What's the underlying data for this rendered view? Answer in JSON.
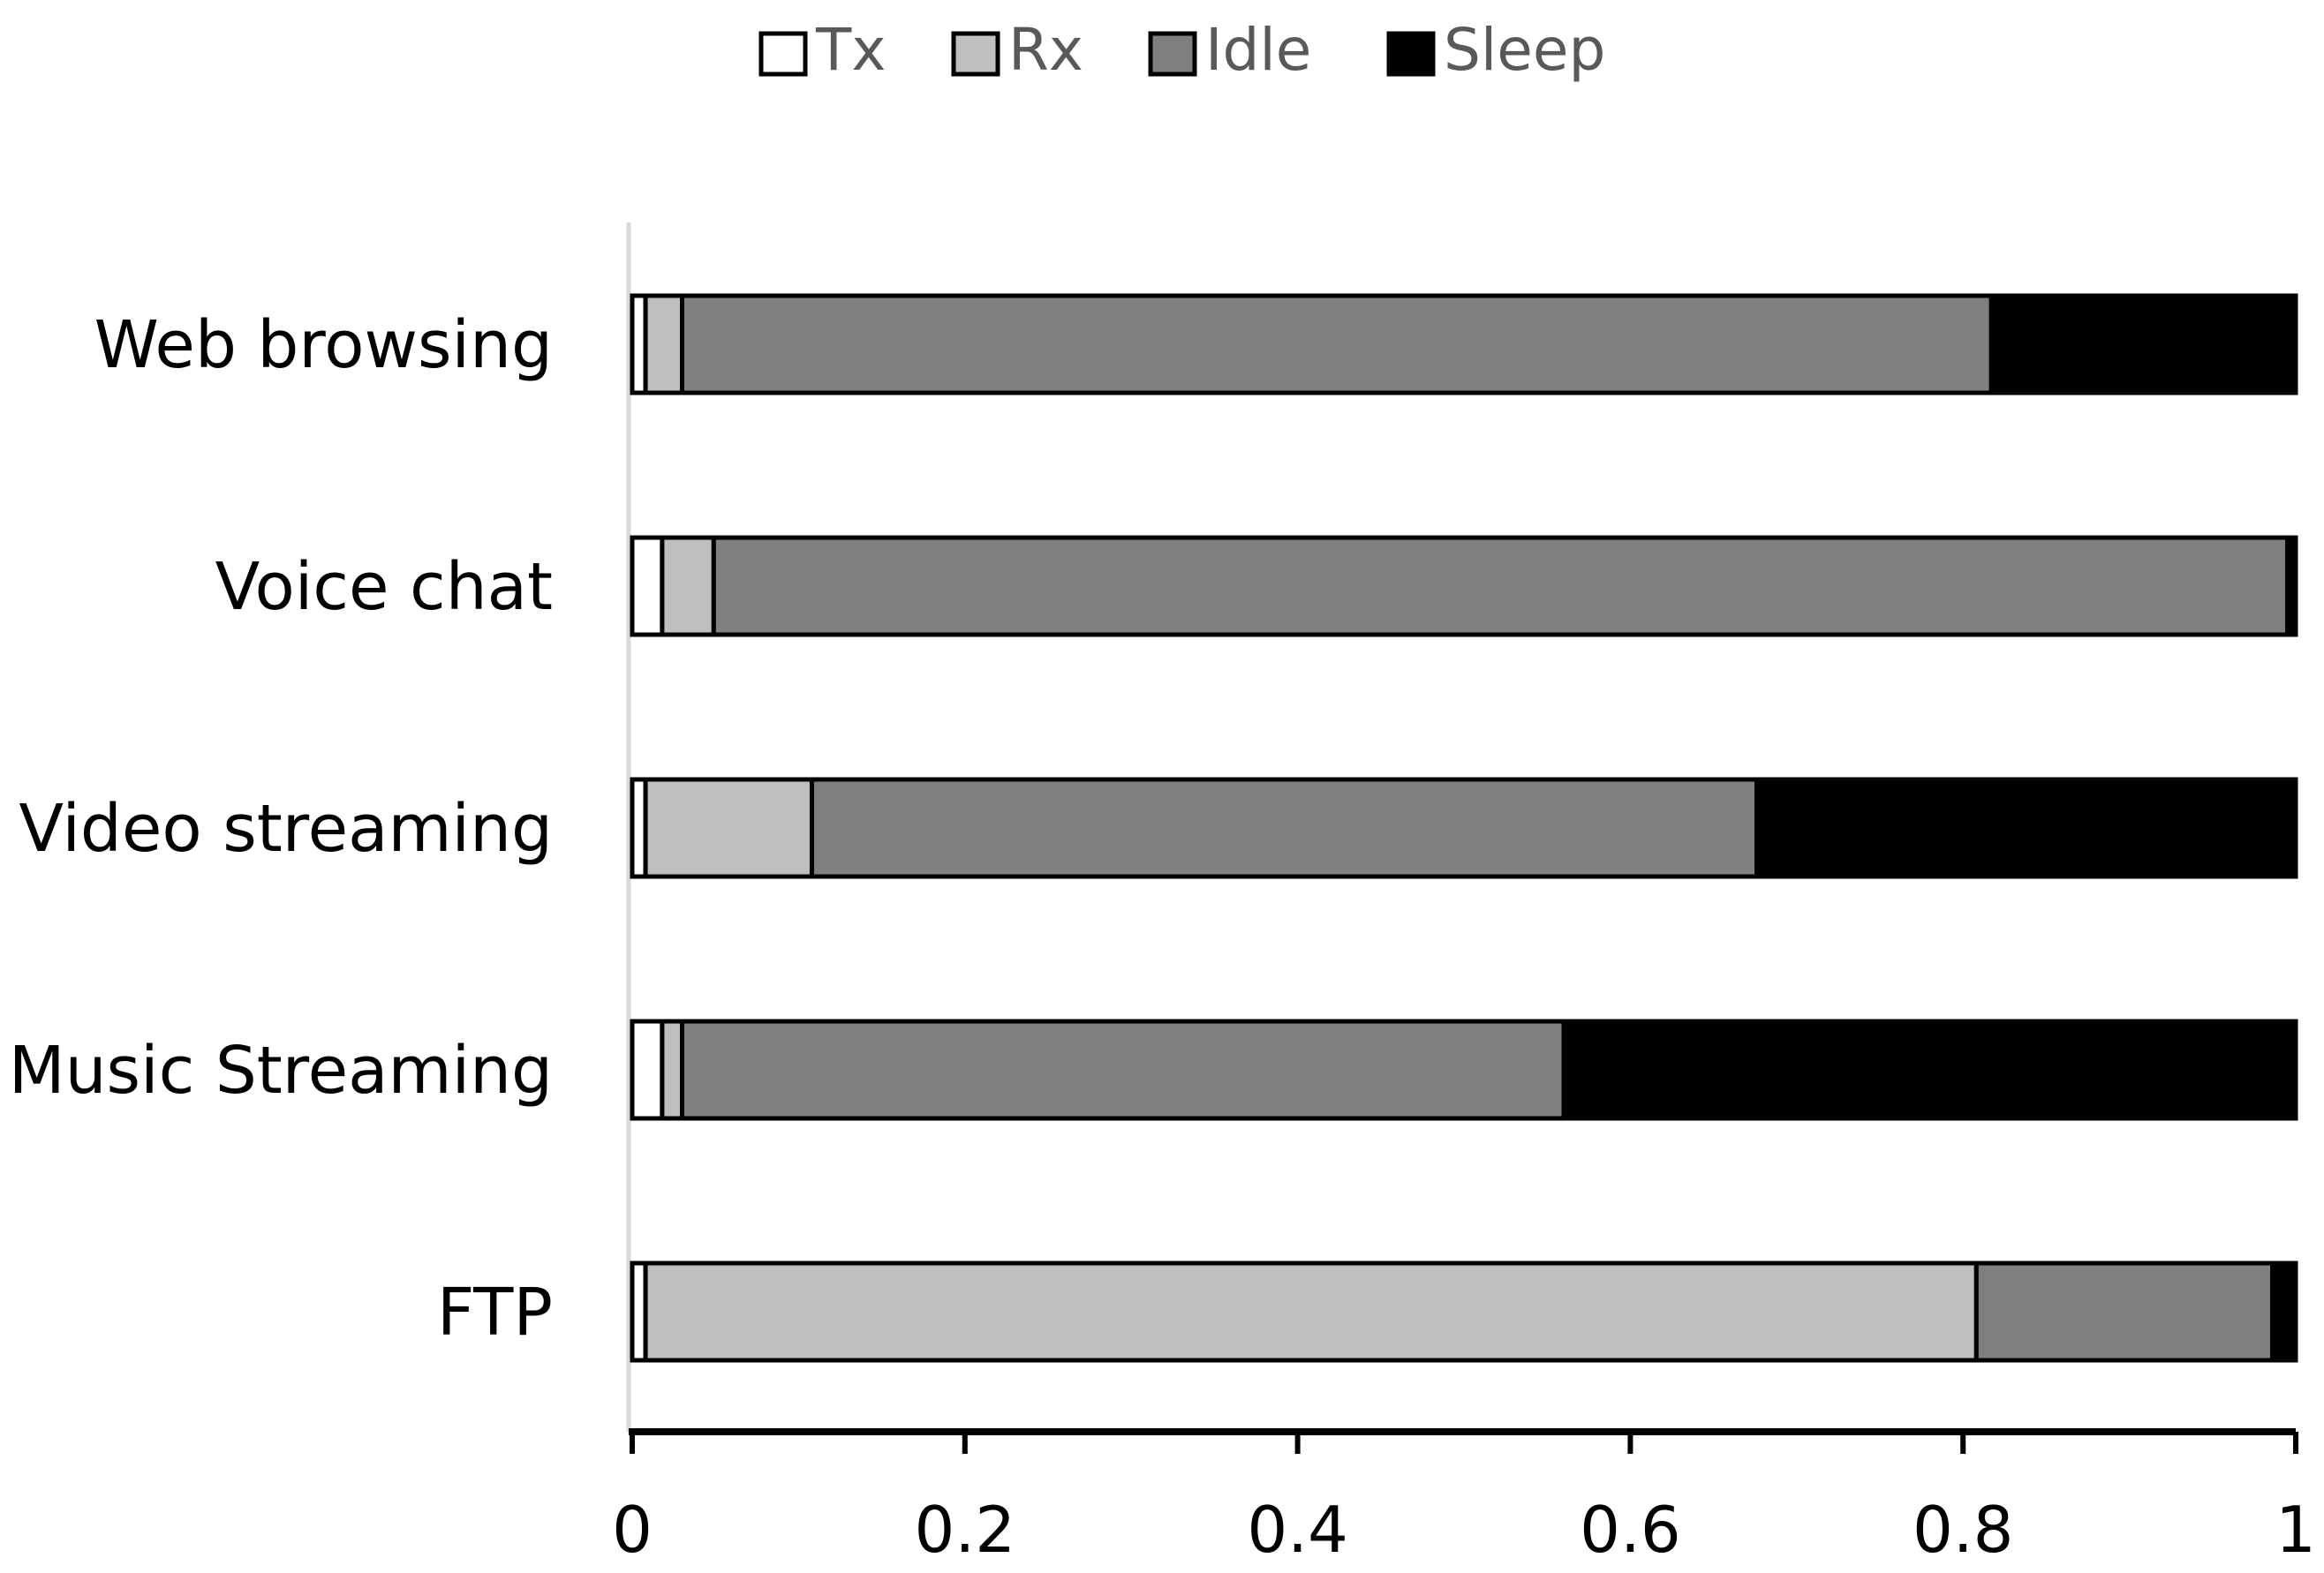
{
  "chart_data": {
    "type": "bar",
    "orientation": "horizontal",
    "stacked": true,
    "categories": [
      "Web browsing",
      "Voice chat",
      "Video streaming",
      "Music Streaming",
      "FTP"
    ],
    "series": [
      {
        "name": "Tx",
        "color": "#ffffff",
        "values": [
          0.008,
          0.018,
          0.008,
          0.018,
          0.008
        ]
      },
      {
        "name": "Rx",
        "color": "#bfbfbf",
        "values": [
          0.022,
          0.031,
          0.1,
          0.012,
          0.8
        ]
      },
      {
        "name": "Idle",
        "color": "#7f7f7f",
        "values": [
          0.787,
          0.946,
          0.568,
          0.53,
          0.178
        ]
      },
      {
        "name": "Sleep",
        "color": "#000000",
        "values": [
          0.183,
          0.005,
          0.324,
          0.44,
          0.014
        ]
      }
    ],
    "xlim": [
      0,
      1
    ],
    "xticks": [
      "0",
      "0.2",
      "0.4",
      "0.6",
      "0.8",
      "1"
    ],
    "xtick_values": [
      0,
      0.2,
      0.4,
      0.6,
      0.8,
      1
    ],
    "legend_position": "top-center",
    "grid": false,
    "title": "",
    "xlabel": "",
    "ylabel": ""
  }
}
